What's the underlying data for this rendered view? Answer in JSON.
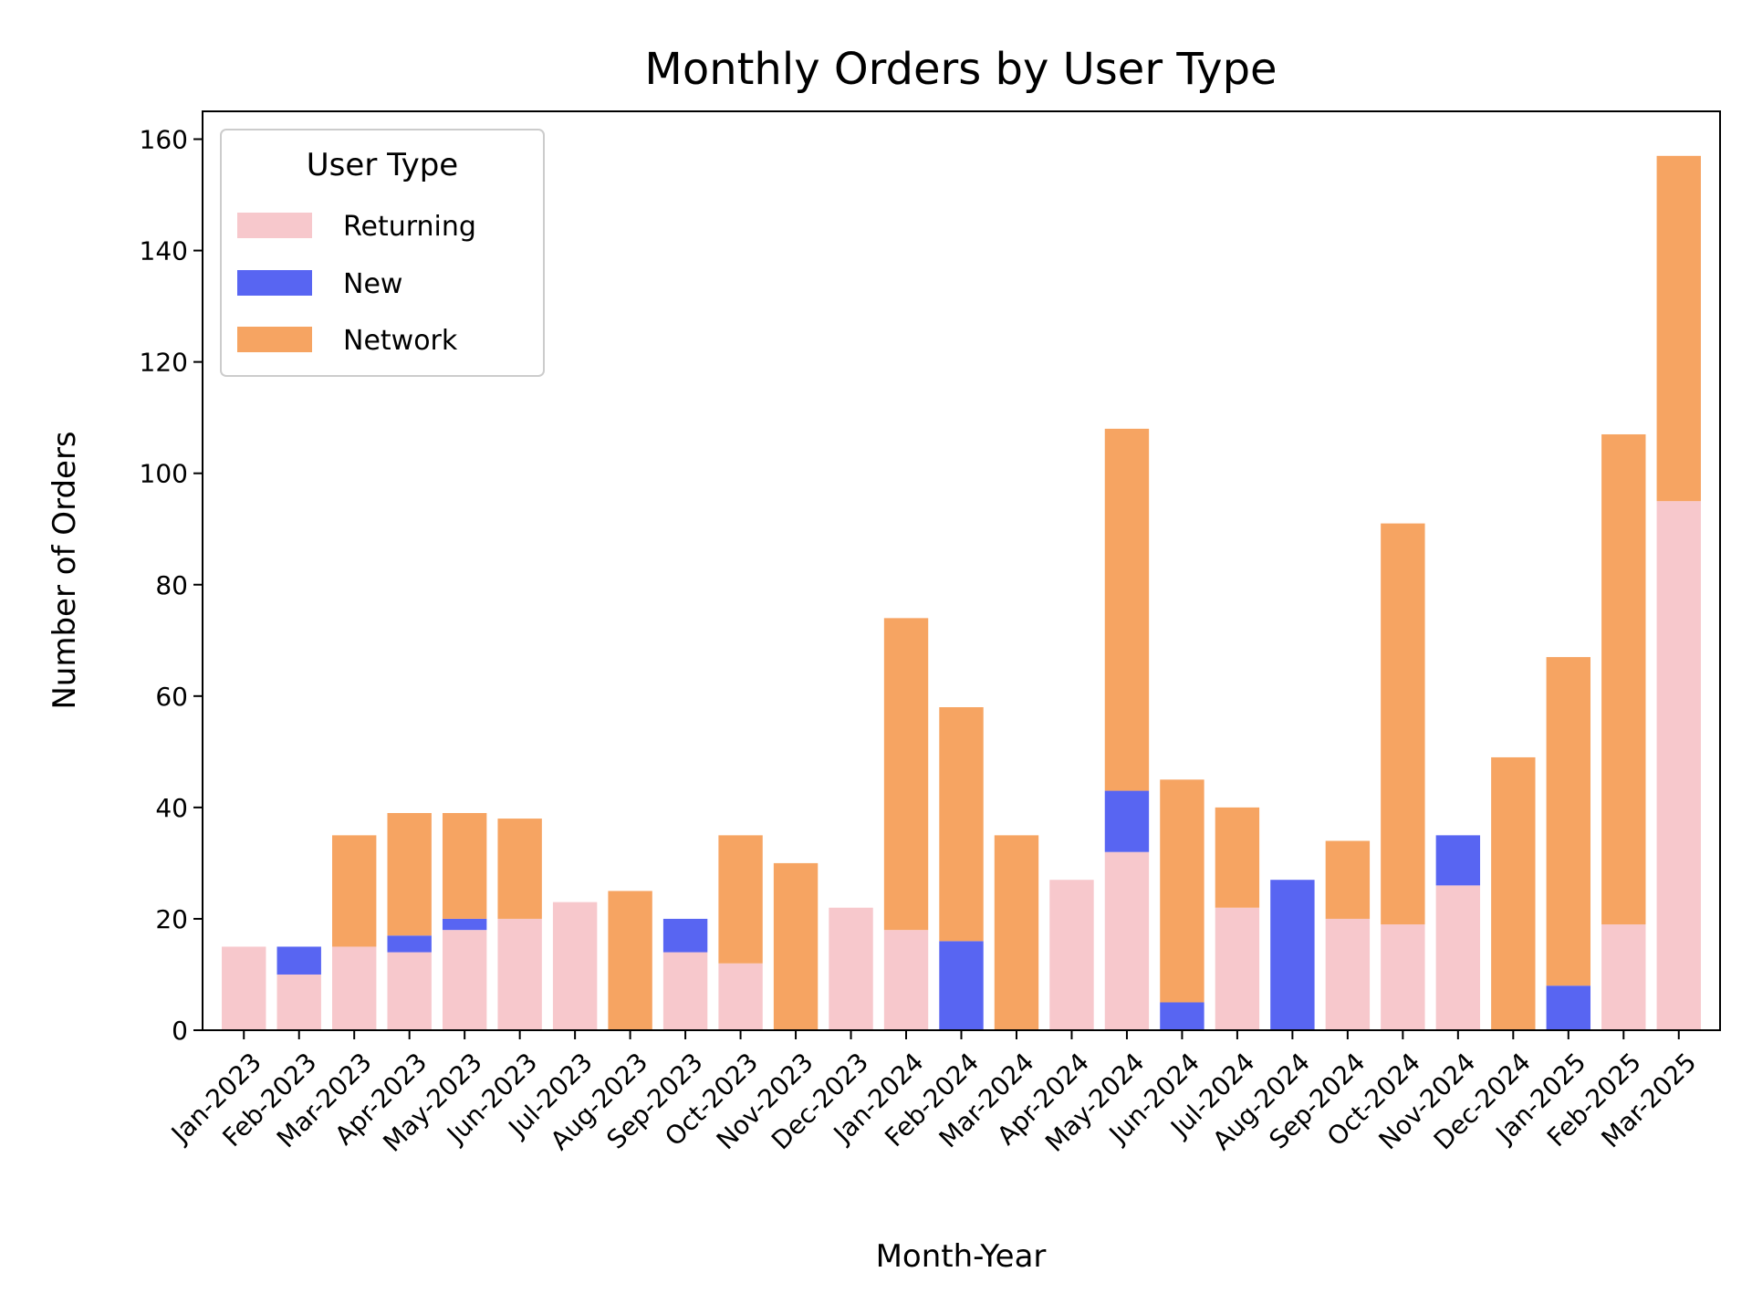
{
  "chart_data": {
    "type": "bar",
    "stacked": true,
    "title": "Monthly Orders by User Type",
    "xlabel": "Month-Year",
    "ylabel": "Number of Orders",
    "ylim": [
      0,
      165
    ],
    "yticks": [
      0,
      20,
      40,
      60,
      80,
      100,
      120,
      140,
      160
    ],
    "grid": false,
    "legend": {
      "title": "User Type",
      "placement": "top-left"
    },
    "categories": [
      "Jan-2023",
      "Feb-2023",
      "Mar-2023",
      "Apr-2023",
      "May-2023",
      "Jun-2023",
      "Jul-2023",
      "Aug-2023",
      "Sep-2023",
      "Oct-2023",
      "Nov-2023",
      "Dec-2023",
      "Jan-2024",
      "Feb-2024",
      "Mar-2024",
      "Apr-2024",
      "May-2024",
      "Jun-2024",
      "Jul-2024",
      "Aug-2024",
      "Sep-2024",
      "Oct-2024",
      "Nov-2024",
      "Dec-2024",
      "Jan-2025",
      "Feb-2025",
      "Mar-2025"
    ],
    "series": [
      {
        "name": "Returning",
        "color": "#f7c8cc",
        "values": [
          15,
          10,
          15,
          14,
          18,
          20,
          23,
          0,
          14,
          12,
          0,
          22,
          18,
          0,
          0,
          27,
          32,
          0,
          22,
          0,
          20,
          19,
          26,
          0,
          0,
          19,
          95
        ]
      },
      {
        "name": "New",
        "color": "#5865f2",
        "values": [
          0,
          5,
          0,
          3,
          2,
          0,
          0,
          0,
          6,
          0,
          0,
          0,
          0,
          16,
          0,
          0,
          11,
          5,
          0,
          27,
          0,
          0,
          9,
          0,
          8,
          0,
          0
        ]
      },
      {
        "name": "Network",
        "color": "#f6a462",
        "values": [
          0,
          0,
          20,
          22,
          19,
          18,
          0,
          25,
          0,
          23,
          30,
          0,
          56,
          42,
          35,
          0,
          65,
          40,
          18,
          0,
          14,
          72,
          0,
          49,
          59,
          88,
          62
        ]
      }
    ]
  }
}
